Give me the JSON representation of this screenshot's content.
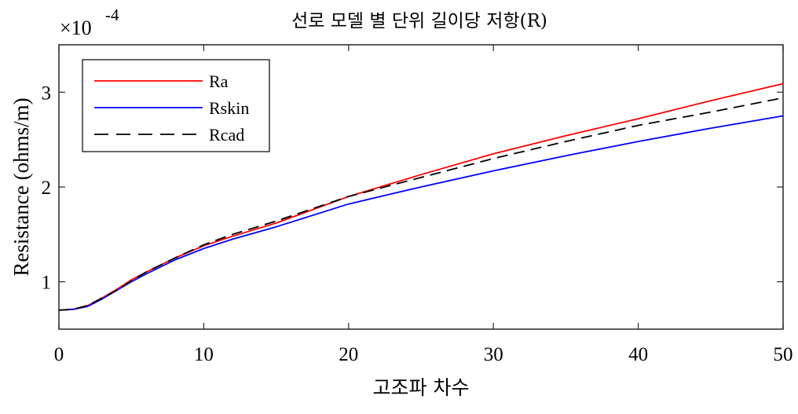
{
  "chart_data": {
    "type": "line",
    "title": "선로 모델 별 단위 길이당 저항(R)",
    "xlabel": "고조파 차수",
    "ylabel": "Resistance (ohms/m)",
    "y_exponent_label": "×10",
    "y_exponent_power": "-4",
    "xlim": [
      0,
      50
    ],
    "ylim": [
      0.5,
      3.5
    ],
    "x_ticks": [
      0,
      10,
      20,
      30,
      40,
      50
    ],
    "y_ticks": [
      1,
      2,
      3
    ],
    "grid": false,
    "legend_position": "top-left",
    "x": [
      0,
      1,
      2,
      3,
      4,
      5,
      6,
      8,
      10,
      12,
      15,
      20,
      25,
      30,
      35,
      40,
      45,
      50
    ],
    "series": [
      {
        "name": "Ra",
        "color": "#ff0000",
        "style": "solid",
        "values": [
          0.7,
          0.71,
          0.75,
          0.83,
          0.92,
          1.02,
          1.1,
          1.25,
          1.38,
          1.48,
          1.62,
          1.9,
          2.13,
          2.35,
          2.54,
          2.72,
          2.91,
          3.09
        ]
      },
      {
        "name": "Rskin",
        "color": "#0000ff",
        "style": "solid",
        "values": [
          0.7,
          0.71,
          0.74,
          0.82,
          0.91,
          1.0,
          1.08,
          1.23,
          1.35,
          1.45,
          1.58,
          1.82,
          2.0,
          2.17,
          2.33,
          2.48,
          2.62,
          2.75
        ]
      },
      {
        "name": "Rcad",
        "color": "#000000",
        "style": "dashed",
        "values": [
          0.7,
          0.71,
          0.75,
          0.83,
          0.91,
          1.01,
          1.1,
          1.25,
          1.39,
          1.5,
          1.64,
          1.9,
          2.1,
          2.3,
          2.48,
          2.65,
          2.79,
          2.94
        ]
      }
    ]
  }
}
